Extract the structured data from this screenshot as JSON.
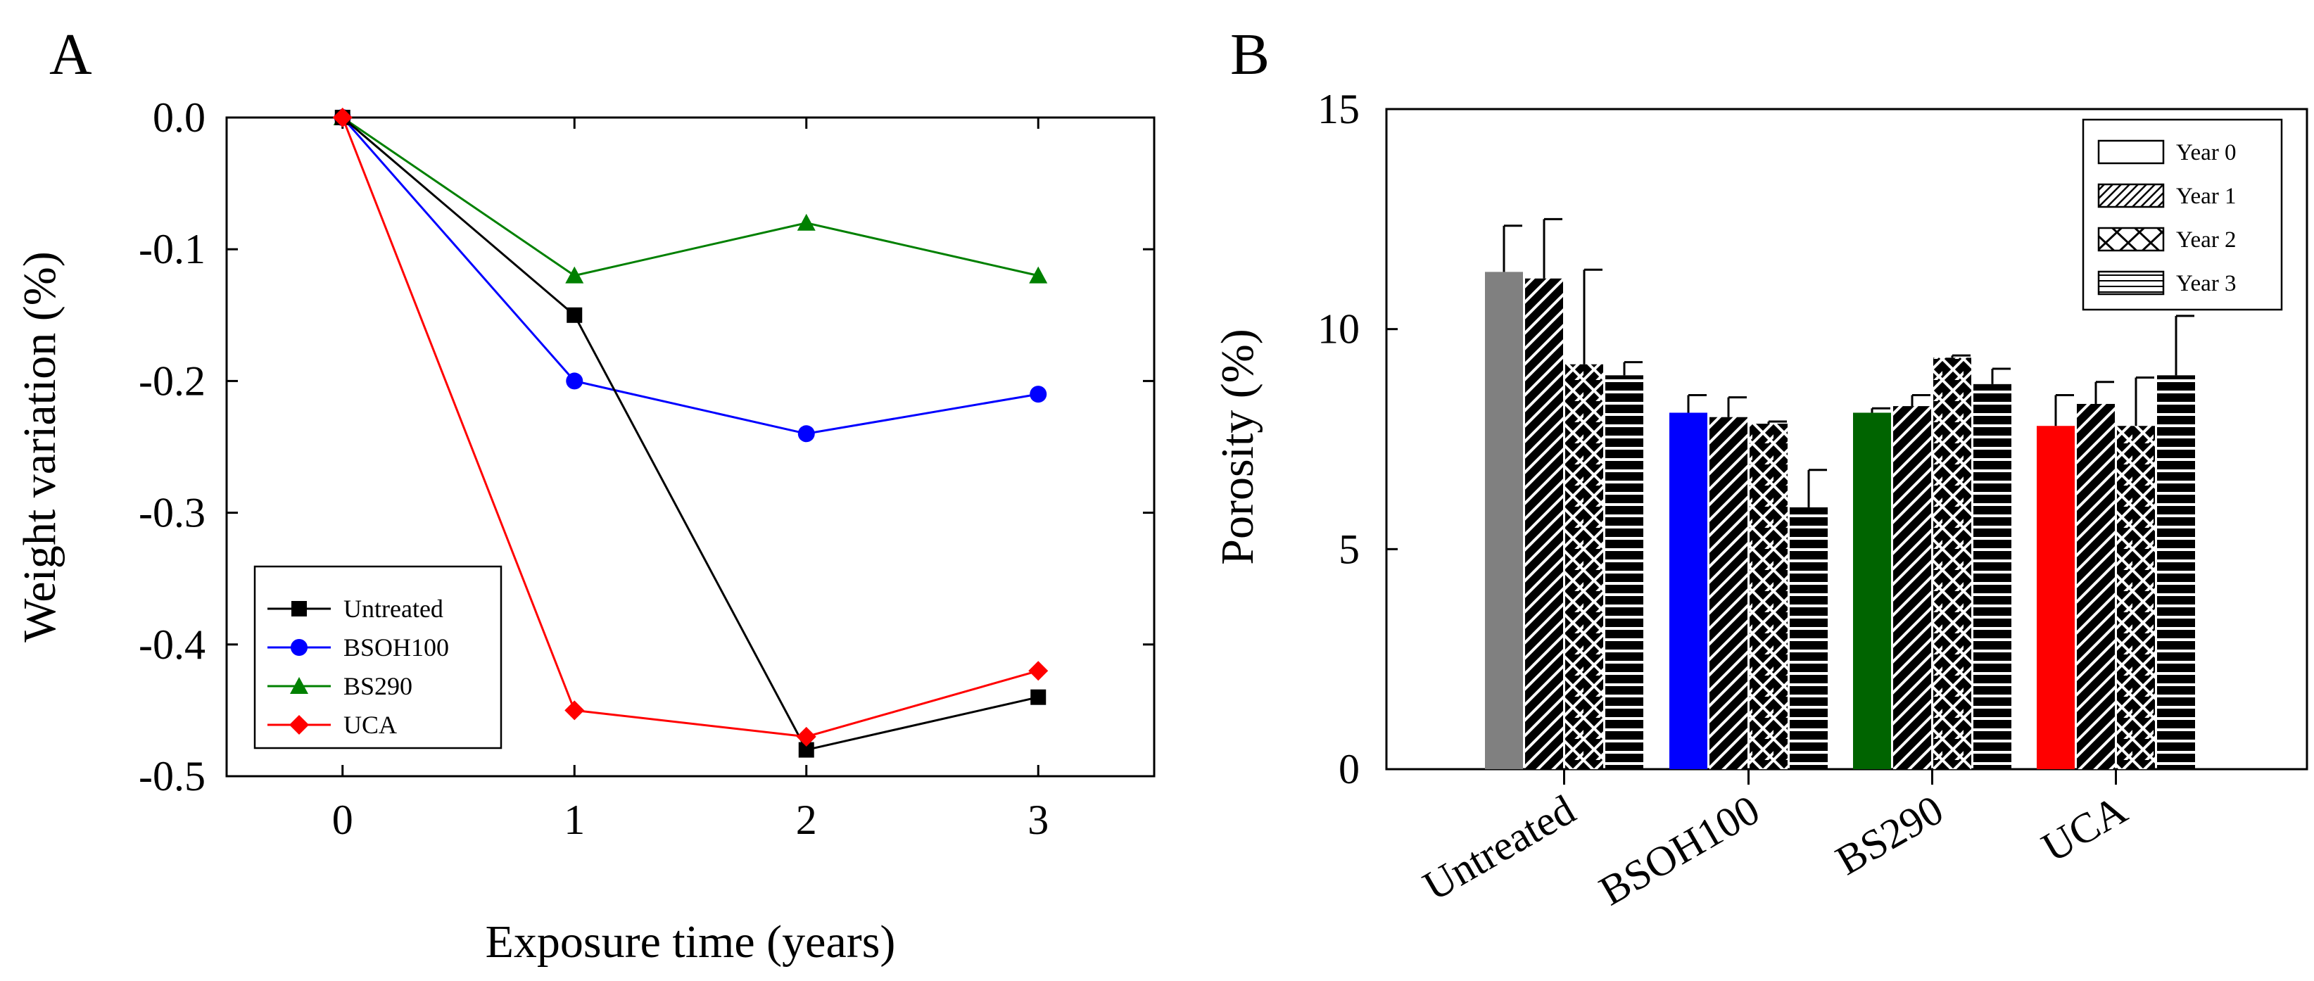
{
  "chart_data": [
    {
      "panel": "A",
      "type": "line",
      "xlabel": "Exposure time (years)",
      "ylabel": "Weight variation (%)",
      "x": [
        0,
        1,
        2,
        3
      ],
      "xticks": [
        "0",
        "1",
        "2",
        "3"
      ],
      "xlim": [
        -0.5,
        3.5
      ],
      "ylim": [
        -0.5,
        0.0
      ],
      "yticks": [
        "0.0",
        "-0.1",
        "-0.2",
        "-0.3",
        "-0.4",
        "-0.5"
      ],
      "ytick_values": [
        0.0,
        -0.1,
        -0.2,
        -0.3,
        -0.4,
        -0.5
      ],
      "legend_position": "bottom-left",
      "series": [
        {
          "name": "Untreated",
          "color": "#000000",
          "marker": "square",
          "values": [
            0.0,
            -0.15,
            -0.48,
            -0.44
          ]
        },
        {
          "name": "BSOH100",
          "color": "#0000ff",
          "marker": "circle",
          "values": [
            0.0,
            -0.2,
            -0.24,
            -0.21
          ]
        },
        {
          "name": "BS290",
          "color": "#008000",
          "marker": "triangle",
          "values": [
            0.0,
            -0.12,
            -0.08,
            -0.12
          ]
        },
        {
          "name": "UCA",
          "color": "#ff0000",
          "marker": "diamond",
          "values": [
            0.0,
            -0.45,
            -0.47,
            -0.42
          ]
        }
      ]
    },
    {
      "panel": "B",
      "type": "bar",
      "ylabel": "Porosity (%)",
      "ylim": [
        0,
        15
      ],
      "yticks": [
        "0",
        "5",
        "10",
        "15"
      ],
      "ytick_values": [
        0,
        5,
        10,
        15
      ],
      "categories": [
        "Untreated",
        "BSOH100",
        "BS290",
        "UCA"
      ],
      "category_colors": [
        "#808080",
        "#0000ff",
        "#006400",
        "#ff0000"
      ],
      "legend_position": "top-right",
      "series": [
        {
          "name": "Year 0",
          "pattern": "solid",
          "values": [
            11.3,
            8.1,
            8.1,
            7.8
          ],
          "errors": [
            1.05,
            0.4,
            0.1,
            0.7
          ]
        },
        {
          "name": "Year 1",
          "pattern": "diagonal",
          "values": [
            11.15,
            8.0,
            8.25,
            8.3
          ],
          "errors": [
            1.35,
            0.45,
            0.25,
            0.5
          ]
        },
        {
          "name": "Year 2",
          "pattern": "crosshatch",
          "values": [
            9.2,
            7.85,
            9.35,
            7.8
          ],
          "errors": [
            2.15,
            0.05,
            0.05,
            1.1
          ]
        },
        {
          "name": "Year 3",
          "pattern": "horizontal",
          "values": [
            8.95,
            5.95,
            8.75,
            8.95
          ],
          "errors": [
            0.3,
            0.85,
            0.35,
            1.35
          ]
        }
      ]
    }
  ]
}
